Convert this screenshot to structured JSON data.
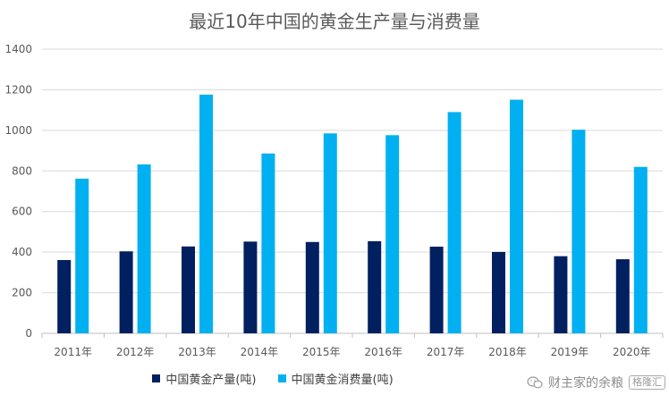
{
  "chart_data": {
    "type": "bar",
    "title": "最近10年中国的黄金生产量与消费量",
    "xlabel": "",
    "ylabel": "",
    "categories": [
      "2011年",
      "2012年",
      "2013年",
      "2014年",
      "2015年",
      "2016年",
      "2017年",
      "2018年",
      "2019年",
      "2020年"
    ],
    "series": [
      {
        "name": "中国黄金产量(吨)",
        "color": "#002060",
        "values": [
          361,
          404,
          428,
          452,
          450,
          454,
          427,
          401,
          380,
          365
        ]
      },
      {
        "name": "中国黄金消费量(吨)",
        "color": "#00B0F0",
        "values": [
          762,
          832,
          1176,
          886,
          985,
          976,
          1090,
          1151,
          1003,
          820
        ]
      }
    ],
    "ylim": [
      0,
      1400
    ],
    "yticks": [
      0,
      200,
      400,
      600,
      800,
      1000,
      1200,
      1400
    ],
    "grid": true,
    "legend_position": "bottom"
  },
  "watermark": {
    "text": "财主家的余粮",
    "logo_text": "格隆汇"
  }
}
